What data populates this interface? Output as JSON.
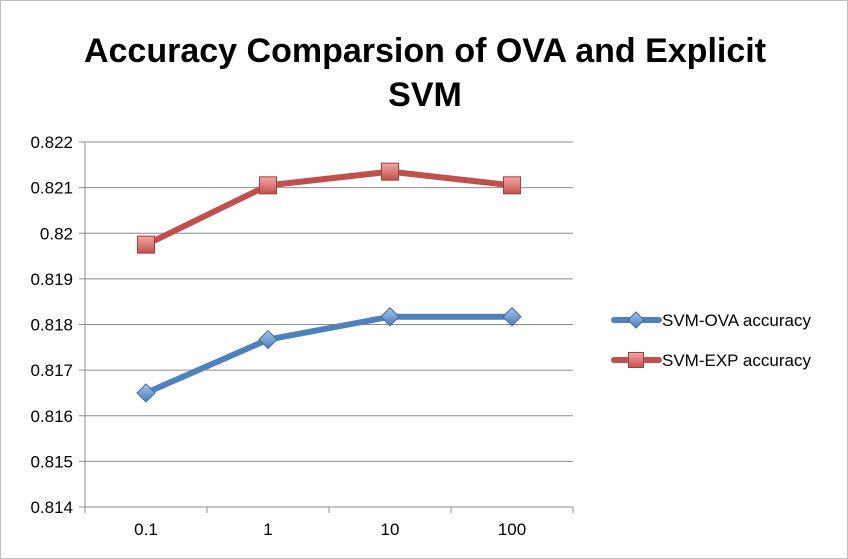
{
  "chart_data": {
    "type": "line",
    "title": "Accuracy Comparsion of OVA and Explicit SVM",
    "xlabel": "",
    "ylabel": "",
    "categories": [
      "0.1",
      "1",
      "10",
      "100"
    ],
    "ylim": [
      0.814,
      0.822
    ],
    "yticks": [
      0.814,
      0.815,
      0.816,
      0.817,
      0.818,
      0.819,
      0.82,
      0.821,
      0.822
    ],
    "ytick_labels": [
      "0.814",
      "0.815",
      "0.816",
      "0.817",
      "0.818",
      "0.819",
      "0.82",
      "0.821",
      "0.822"
    ],
    "grid": "horizontal",
    "legend_position": "right",
    "series": [
      {
        "name": "SVM-OVA accuracy",
        "values": [
          0.8165,
          0.81767,
          0.81817,
          0.81817
        ],
        "color": "#4f81bd",
        "marker": "diamond"
      },
      {
        "name": "SVM-EXP accuracy",
        "values": [
          0.81975,
          0.82105,
          0.82135,
          0.82105
        ],
        "color": "#c0504d",
        "marker": "square"
      }
    ]
  }
}
